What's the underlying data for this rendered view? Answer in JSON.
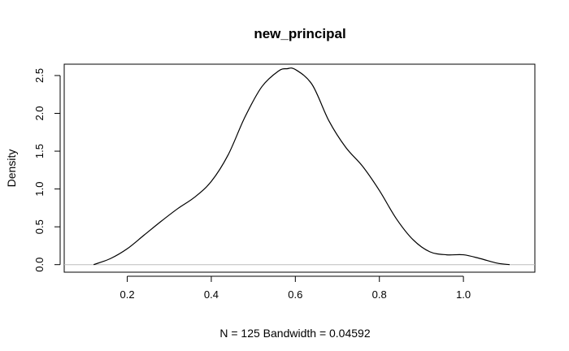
{
  "chart_data": {
    "type": "line",
    "title": "new_principal",
    "xlabel": "N = 125   Bandwidth = 0.04592",
    "ylabel": "Density",
    "xlim": [
      0.05,
      1.17
    ],
    "ylim": [
      -0.1,
      2.65
    ],
    "x_ticks": [
      0.2,
      0.4,
      0.6,
      0.8,
      1.0
    ],
    "x_tick_labels": [
      "0.2",
      "0.4",
      "0.6",
      "0.8",
      "1.0"
    ],
    "y_ticks": [
      0.0,
      0.5,
      1.0,
      1.5,
      2.0,
      2.5
    ],
    "y_tick_labels": [
      "0.0",
      "0.5",
      "1.0",
      "1.5",
      "2.0",
      "2.5"
    ],
    "baseline": 0,
    "grid": false,
    "colors": {
      "line": "#000000",
      "baseline": "#bebebe"
    },
    "series": [
      {
        "x": [
          0.12,
          0.16,
          0.2,
          0.24,
          0.28,
          0.32,
          0.36,
          0.4,
          0.44,
          0.48,
          0.52,
          0.56,
          0.58,
          0.6,
          0.64,
          0.68,
          0.72,
          0.76,
          0.8,
          0.84,
          0.88,
          0.92,
          0.96,
          1.0,
          1.04,
          1.08,
          1.11
        ],
        "y": [
          0.0,
          0.08,
          0.21,
          0.39,
          0.57,
          0.74,
          0.89,
          1.1,
          1.45,
          1.95,
          2.35,
          2.56,
          2.59,
          2.58,
          2.38,
          1.9,
          1.55,
          1.3,
          0.98,
          0.61,
          0.33,
          0.17,
          0.13,
          0.13,
          0.08,
          0.02,
          0.0
        ]
      }
    ]
  }
}
